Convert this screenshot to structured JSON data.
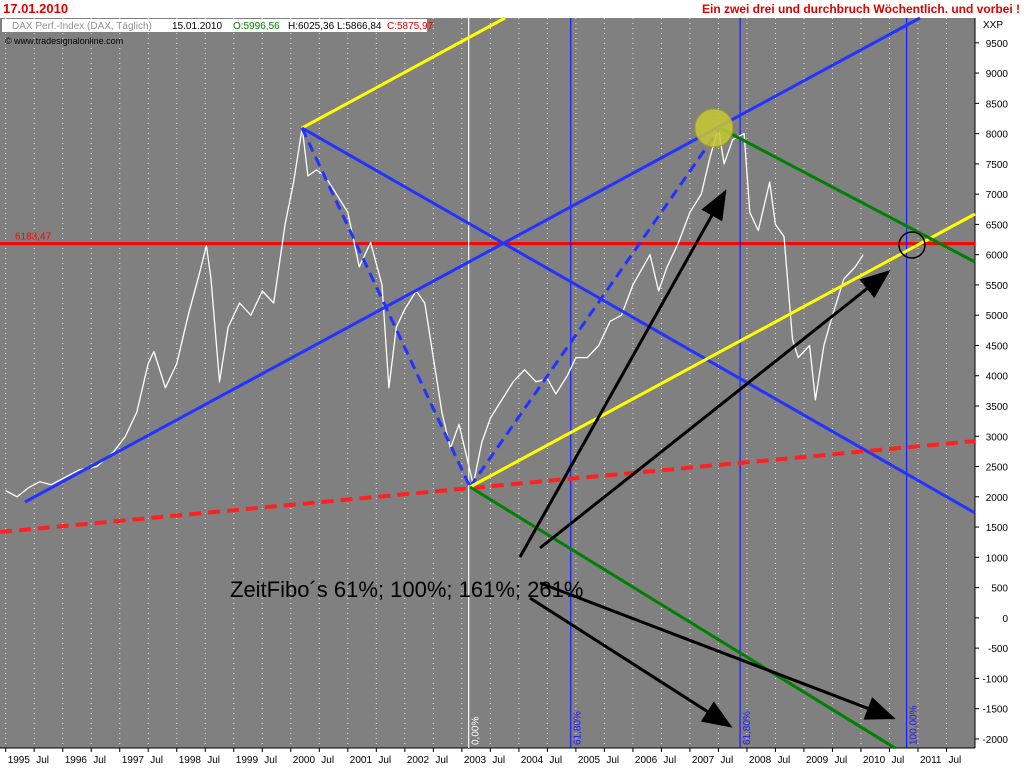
{
  "chart_data": {
    "type": "line",
    "date": "17.01.2010",
    "title": "Ein zwei drei und durchbruch  Wöchentlich. und vorbei !",
    "legend_box": {
      "instrument": "DAX Perf.-Index (DAX, Täglich)",
      "date": "15.01.2010",
      "open": "O:5996,56",
      "high": "H:6025,36",
      "low": "L:5866,84",
      "close": "C:5875,97"
    },
    "copyright": "© www.tradesignalonline.com",
    "y_label": "XXP",
    "annotation": "ZeitFibo´s 61%; 100%; 161%; 261%",
    "grid": "x",
    "xlim": [
      1994.9,
      2012.0
    ],
    "ylim": [
      -2150,
      9910
    ],
    "yticks": [
      -2000,
      -1500,
      -1000,
      -500,
      0,
      500,
      1000,
      1500,
      2000,
      2500,
      3000,
      3500,
      4000,
      4500,
      5000,
      5500,
      6000,
      6500,
      7000,
      7500,
      8000,
      8500,
      9000,
      9500
    ],
    "xticks": [
      1995,
      {
        "value": 1995.5,
        "label": "Jul"
      },
      1996,
      {
        "value": 1996.5,
        "label": "Jul"
      },
      1997,
      {
        "value": 1997.5,
        "label": "Jul"
      },
      1998,
      {
        "value": 1998.5,
        "label": "Jul"
      },
      1999,
      {
        "value": 1999.5,
        "label": "Jul"
      },
      2000,
      {
        "value": 2000.5,
        "label": "Jul"
      },
      2001,
      {
        "value": 2001.5,
        "label": "Jul"
      },
      2002,
      {
        "value": 2002.5,
        "label": "Jul"
      },
      2003,
      {
        "value": 2003.5,
        "label": "Jul"
      },
      2004,
      {
        "value": 2004.5,
        "label": "Jul"
      },
      2005,
      {
        "value": 2005.5,
        "label": "Jul"
      },
      2006,
      {
        "value": 2006.5,
        "label": "Jul"
      },
      2007,
      {
        "value": 2007.5,
        "label": "Jul"
      },
      2008,
      {
        "value": 2008.5,
        "label": "Jul"
      },
      2009,
      {
        "value": 2009.5,
        "label": "Jul"
      },
      2010,
      {
        "value": 2010.5,
        "label": "Jul"
      },
      2011,
      {
        "value": 2011.5,
        "label": "Jul"
      }
    ],
    "hline": {
      "value": 6183.47,
      "label": "6183,47",
      "color": "#ff0000"
    },
    "vlines": [
      {
        "value": 2003.12,
        "label": "0,00%"
      },
      {
        "value": 2004.91,
        "label": "61,80%"
      },
      {
        "value": 2007.88,
        "label": "61,80%"
      },
      {
        "value": 2010.8,
        "label": "100,00%"
      }
    ],
    "series": [
      {
        "color": "#ffffff",
        "x": [
          1995.0,
          1995.2,
          1995.4,
          1995.6,
          1995.8,
          1996.0,
          1996.3,
          1996.6,
          1996.9,
          1997.1,
          1997.3,
          1997.5,
          1997.6,
          1997.8,
          1998.0,
          1998.2,
          1998.4,
          1998.52,
          1998.6,
          1998.75,
          1998.9,
          1999.1,
          1999.3,
          1999.5,
          1999.7,
          1999.9,
          2000.05,
          2000.2,
          2000.3,
          2000.45,
          2000.6,
          2000.8,
          2001.0,
          2001.2,
          2001.4,
          2001.6,
          2001.72,
          2001.85,
          2002.0,
          2002.2,
          2002.35,
          2002.5,
          2002.65,
          2002.8,
          2002.95,
          2003.05,
          2003.2,
          2003.35,
          2003.5,
          2003.7,
          2003.9,
          2004.1,
          2004.3,
          2004.5,
          2004.65,
          2004.85,
          2005.0,
          2005.2,
          2005.4,
          2005.6,
          2005.8,
          2006.0,
          2006.3,
          2006.45,
          2006.6,
          2006.8,
          2007.0,
          2007.2,
          2007.35,
          2007.5,
          2007.6,
          2007.75,
          2007.95,
          2008.05,
          2008.2,
          2008.4,
          2008.5,
          2008.65,
          2008.8,
          2008.9,
          2009.1,
          2009.2,
          2009.35,
          2009.5,
          2009.7,
          2009.9,
          2010.04
        ],
        "values": [
          2100,
          2000,
          2150,
          2250,
          2200,
          2300,
          2450,
          2500,
          2750,
          3000,
          3400,
          4200,
          4400,
          3800,
          4200,
          5000,
          5700,
          6150,
          5600,
          3900,
          4800,
          5200,
          5000,
          5400,
          5200,
          6500,
          7200,
          8100,
          7300,
          7400,
          7300,
          7000,
          6700,
          5800,
          6200,
          5500,
          3800,
          4800,
          5100,
          5400,
          5200,
          4300,
          3400,
          2800,
          3200,
          2800,
          2200,
          2900,
          3300,
          3600,
          3900,
          4100,
          3900,
          3950,
          3700,
          4000,
          4300,
          4300,
          4500,
          4900,
          5000,
          5500,
          6000,
          5400,
          5800,
          6200,
          6700,
          7000,
          7600,
          8100,
          7500,
          7900,
          8000,
          6700,
          6400,
          7200,
          6500,
          6300,
          4600,
          4300,
          4500,
          3600,
          4500,
          5000,
          5600,
          5800,
          6000
        ]
      }
    ]
  }
}
